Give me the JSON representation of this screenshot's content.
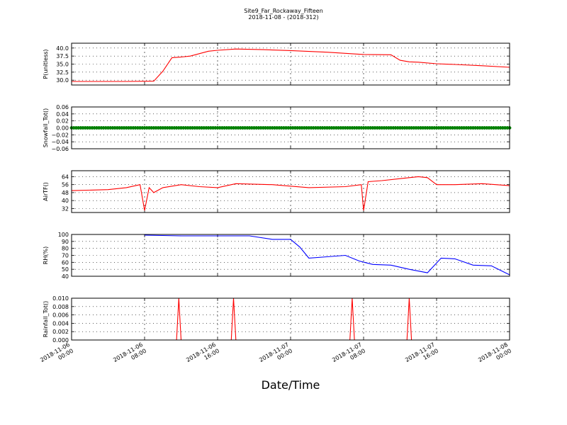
{
  "figure": {
    "title": "Site9_Far_Rockaway_Fifteen",
    "subtitle": "2018-11-08 - (2018-312)",
    "xlabel": "Date/Time",
    "xtick_labels": [
      [
        "2018-11-06",
        "00:00"
      ],
      [
        "2018-11-06",
        "08:00"
      ],
      [
        "2018-11-06",
        "16:00"
      ],
      [
        "2018-11-07",
        "00:00"
      ],
      [
        "2018-11-07",
        "08:00"
      ],
      [
        "2018-11-07",
        "16:00"
      ],
      [
        "2018-11-08",
        "00:00"
      ]
    ]
  },
  "chart_data": [
    {
      "type": "line",
      "ylabel": "P(unitless)",
      "color": "#ff0000",
      "ylim": [
        28.5,
        41.5
      ],
      "yticks": [
        30.0,
        32.5,
        35.0,
        37.5,
        40.0
      ],
      "ytick_labels": [
        "30.0",
        "32.5",
        "35.0",
        "37.5",
        "40.0"
      ],
      "grid": true,
      "series": [
        {
          "x": [
            "2018-11-06 00:00",
            "2018-11-06 06:00",
            "2018-11-06 09:00",
            "2018-11-06 10:00",
            "2018-11-06 11:00",
            "2018-11-06 12:00",
            "2018-11-06 13:00",
            "2018-11-06 15:00",
            "2018-11-06 16:00",
            "2018-11-06 18:00",
            "2018-11-06 21:00",
            "2018-11-07 00:00",
            "2018-11-07 04:00",
            "2018-11-07 08:00",
            "2018-11-07 11:00",
            "2018-11-07 12:00",
            "2018-11-07 13:00",
            "2018-11-07 14:00",
            "2018-11-07 16:00",
            "2018-11-07 18:00",
            "2018-11-07 21:00",
            "2018-11-08 00:00"
          ],
          "y": [
            29.6,
            29.6,
            29.7,
            32.8,
            37.0,
            37.2,
            37.5,
            39.0,
            39.3,
            39.7,
            39.5,
            39.2,
            38.7,
            38.0,
            37.9,
            36.2,
            35.7,
            35.6,
            35.1,
            34.9,
            34.5,
            34.0
          ]
        }
      ]
    },
    {
      "type": "scatter",
      "ylabel": "Snowfall_Tot()",
      "color": "#008000",
      "ylim": [
        -0.06,
        0.06
      ],
      "yticks": [
        -0.06,
        -0.04,
        -0.02,
        0.0,
        0.02,
        0.04,
        0.06
      ],
      "ytick_labels": [
        "−0.06",
        "−0.04",
        "−0.02",
        "0.00",
        "0.02",
        "0.04",
        "0.06"
      ],
      "grid": true,
      "series": [
        {
          "x": [
            "2018-11-06 00:00",
            "2018-11-08 00:00"
          ],
          "y": [
            0.0,
            0.0
          ],
          "marker_every_minutes": 15
        }
      ]
    },
    {
      "type": "line",
      "ylabel": "AirTF()",
      "color": "#ff0000",
      "ylim": [
        28,
        70
      ],
      "yticks": [
        32,
        40,
        48,
        56,
        64
      ],
      "ytick_labels": [
        "32",
        "40",
        "48",
        "56",
        "64"
      ],
      "grid": true,
      "series": [
        {
          "x": [
            "2018-11-06 00:00",
            "2018-11-06 04:00",
            "2018-11-06 06:00",
            "2018-11-06 07:30",
            "2018-11-06 08:00",
            "2018-11-06 08:30",
            "2018-11-06 09:00",
            "2018-11-06 10:00",
            "2018-11-06 12:00",
            "2018-11-06 14:00",
            "2018-11-06 16:00",
            "2018-11-06 18:00",
            "2018-11-06 22:00",
            "2018-11-07 02:00",
            "2018-11-07 06:00",
            "2018-11-07 07:45",
            "2018-11-07 08:00",
            "2018-11-07 08:30",
            "2018-11-07 10:00",
            "2018-11-07 12:00",
            "2018-11-07 14:00",
            "2018-11-07 15:00",
            "2018-11-07 16:00",
            "2018-11-07 18:00",
            "2018-11-07 21:00",
            "2018-11-08 00:00"
          ],
          "y": [
            50,
            51,
            53,
            56,
            30,
            53,
            48,
            53,
            56,
            54,
            53,
            57,
            56,
            53,
            54,
            56,
            30,
            59,
            60,
            62,
            64,
            63,
            56,
            56,
            57,
            55
          ]
        }
      ]
    },
    {
      "type": "line",
      "ylabel": "RH(%)",
      "color": "#0000ff",
      "ylim": [
        40,
        100
      ],
      "yticks": [
        40,
        50,
        60,
        70,
        80,
        90,
        100
      ],
      "ytick_labels": [
        "40",
        "50",
        "60",
        "70",
        "80",
        "90",
        "100"
      ],
      "grid": true,
      "series": [
        {
          "x": [
            "2018-11-06 08:00",
            "2018-11-06 12:00",
            "2018-11-06 16:00",
            "2018-11-06 19:30",
            "2018-11-06 22:00",
            "2018-11-07 00:00",
            "2018-11-07 01:00",
            "2018-11-07 02:00",
            "2018-11-07 04:00",
            "2018-11-07 06:00",
            "2018-11-07 07:30",
            "2018-11-07 09:00",
            "2018-11-07 11:00",
            "2018-11-07 13:00",
            "2018-11-07 15:00",
            "2018-11-07 16:30",
            "2018-11-07 18:00",
            "2018-11-07 20:00",
            "2018-11-07 22:00",
            "2018-11-08 00:00"
          ],
          "y": [
            99,
            98,
            98,
            98,
            93,
            93,
            82,
            66,
            68,
            70,
            62,
            57,
            56,
            50,
            45,
            66,
            65,
            56,
            55,
            42
          ]
        }
      ]
    },
    {
      "type": "line",
      "ylabel": "Rainfall_Tot()",
      "color": "#ff0000",
      "ylim": [
        0.0,
        0.01
      ],
      "yticks": [
        0.0,
        0.002,
        0.004,
        0.006,
        0.008,
        0.01
      ],
      "ytick_labels": [
        "0.000",
        "0.002",
        "0.004",
        "0.006",
        "0.008",
        "0.010"
      ],
      "grid": true,
      "series": [
        {
          "x": [
            "2018-11-06 00:00",
            "2018-11-06 11:30",
            "2018-11-06 11:45",
            "2018-11-06 12:00",
            "2018-11-06 17:30",
            "2018-11-06 17:45",
            "2018-11-06 18:00",
            "2018-11-07 06:30",
            "2018-11-07 06:45",
            "2018-11-07 07:00",
            "2018-11-07 12:45",
            "2018-11-07 13:00",
            "2018-11-07 13:15",
            "2018-11-08 00:00"
          ],
          "y": [
            0,
            0,
            0.01,
            0,
            0,
            0.01,
            0,
            0,
            0.01,
            0,
            0,
            0.01,
            0,
            0
          ]
        }
      ]
    }
  ]
}
